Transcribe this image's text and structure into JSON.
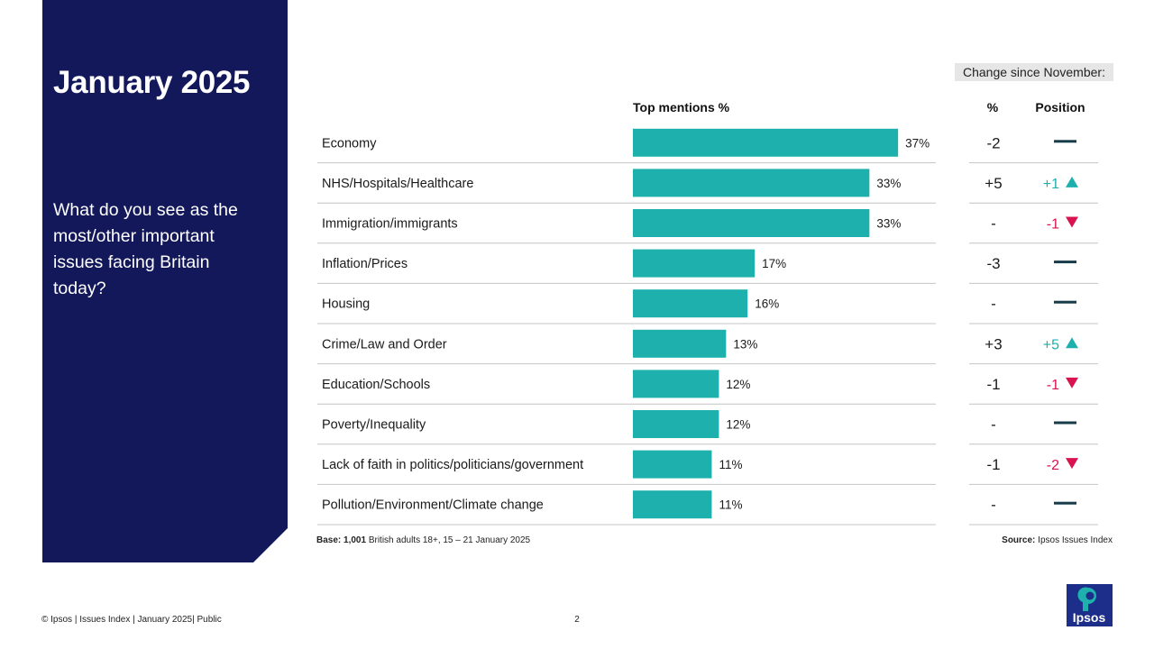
{
  "panel": {
    "title": "January 2025",
    "question": "What do you see as the most/other important issues facing Britain today?"
  },
  "header": {
    "change_since": "Change since November:",
    "top_mentions": "Top mentions %",
    "pct": "%",
    "position": "Position"
  },
  "footer": {
    "base_bold": "Base: 1,001",
    "base_text": " British adults 18+, 15 – 21 January 2025",
    "source_bold": "Source:",
    "source_text": " Ipsos Issues Index",
    "copyright": "© Ipsos | Issues Index | January 2025| Public",
    "page": "2",
    "logo_text": "Ipsos"
  },
  "colors": {
    "bar": "#1db0ac",
    "panel": "#13185a",
    "up": "#1db0ac",
    "down": "#d9134f",
    "same": "#163c4a"
  },
  "chart_data": {
    "type": "bar",
    "orientation": "horizontal",
    "categories": [
      "Economy",
      "NHS/Hospitals/Healthcare",
      "Immigration/immigrants",
      "Inflation/Prices",
      "Housing",
      "Crime/Law and Order",
      "Education/Schools",
      "Poverty/Inequality",
      "Lack of faith in politics/politicians/government",
      "Pollution/Environment/Climate change"
    ],
    "values": [
      37,
      33,
      33,
      17,
      16,
      13,
      12,
      12,
      11,
      11
    ],
    "value_labels": [
      "37%",
      "33%",
      "33%",
      "17%",
      "16%",
      "13%",
      "12%",
      "12%",
      "11%",
      "11%"
    ],
    "change_pct": [
      "-2",
      "+5",
      "-",
      "-3",
      "-",
      "+3",
      "-1",
      "-",
      "-1",
      "-"
    ],
    "change_position": [
      {
        "dir": "same",
        "label": ""
      },
      {
        "dir": "up",
        "label": "+1"
      },
      {
        "dir": "down",
        "label": "-1"
      },
      {
        "dir": "same",
        "label": ""
      },
      {
        "dir": "same",
        "label": ""
      },
      {
        "dir": "up",
        "label": "+5"
      },
      {
        "dir": "down",
        "label": "-1"
      },
      {
        "dir": "same",
        "label": ""
      },
      {
        "dir": "down",
        "label": "-2"
      },
      {
        "dir": "same",
        "label": ""
      }
    ],
    "xlim": [
      0,
      40
    ],
    "grid": false,
    "legend": "none"
  }
}
